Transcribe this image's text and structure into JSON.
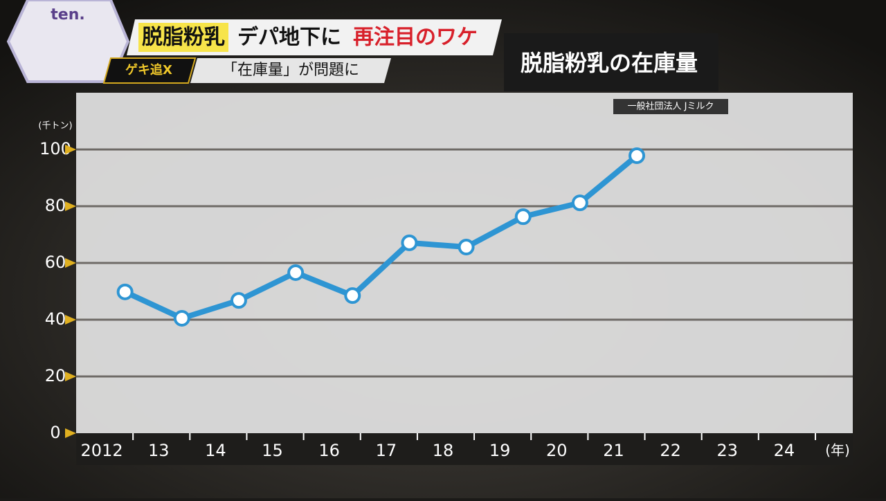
{
  "header": {
    "logo": "ten.",
    "headline_highlight": "脱脂粉乳",
    "headline_middle": "デパ地下に",
    "headline_red": "再注目のワケ",
    "badge": "ゲキ追X",
    "subtitle": "「在庫量」が問題に"
  },
  "chart_data": {
    "type": "line",
    "title": "脱脂粉乳の在庫量",
    "source": "一般社団法人 Jミルク",
    "y_unit": "(千トン)",
    "x_unit": "(年)",
    "categories": [
      "2012",
      "13",
      "14",
      "15",
      "16",
      "17",
      "18",
      "19",
      "20",
      "21",
      "22",
      "23",
      "24"
    ],
    "values": [
      49.8,
      40.5,
      46.8,
      56.6,
      48.5,
      67.1,
      65.6,
      76.3,
      81.2,
      97.8,
      null,
      null,
      null
    ],
    "color": "#2e95d3",
    "ylim": [
      0,
      120
    ],
    "yticks": [
      0,
      20,
      40,
      60,
      80,
      100
    ],
    "grid": true
  }
}
